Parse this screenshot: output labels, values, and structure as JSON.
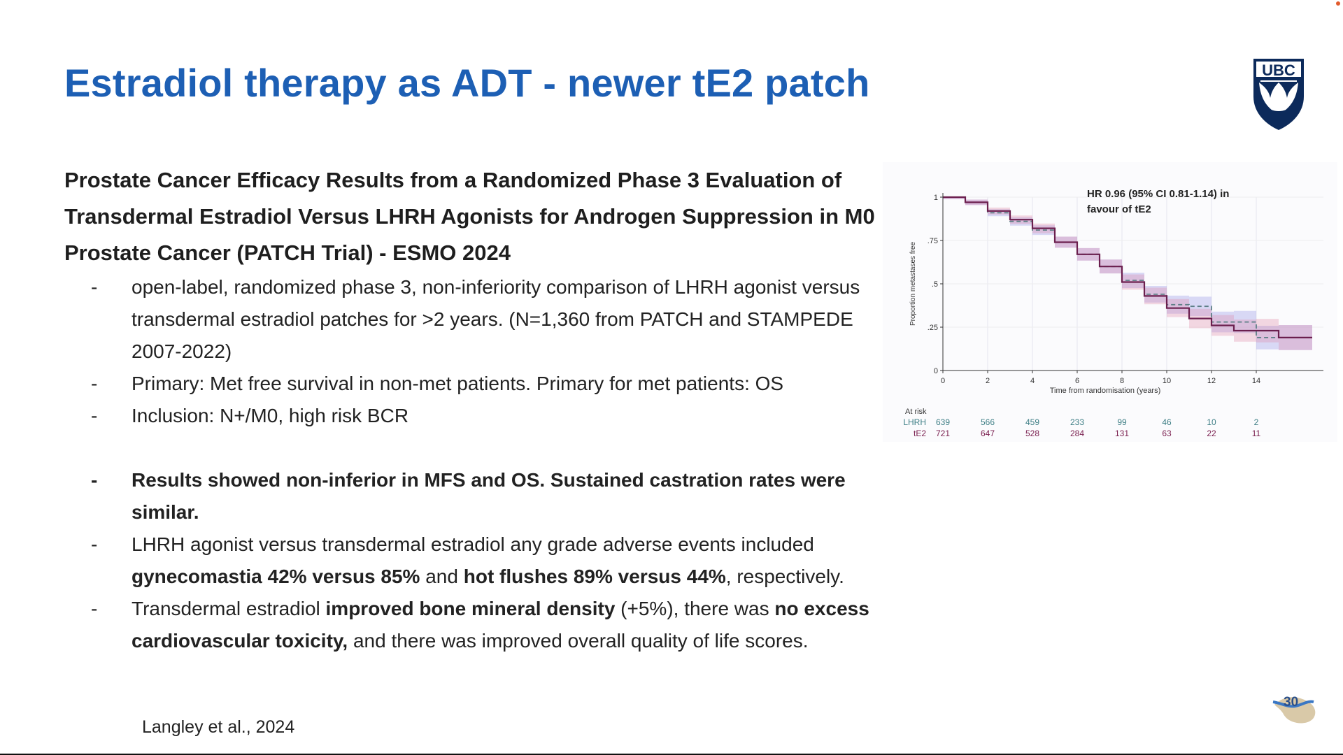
{
  "slide": {
    "title": "Estradiol therapy as ADT - newer tE2 patch",
    "logo_text": "UBC",
    "heading": "Prostate Cancer Efficacy Results from a Randomized Phase 3 Evaluation of Transdermal Estradiol Versus LHRH Agonists for Androgen Suppression in M0 Prostate Cancer (PATCH Trial) - ESMO 2024",
    "bullet_dash": "-",
    "bullets": {
      "b1": "open-label, randomized phase 3, non-inferiority comparison of LHRH agonist versus transdermal estradiol patches for >2 years. (N=1,360 from PATCH and STAMPEDE 2007-2022)",
      "b2": "Primary: Met free survival in non-met patients. Primary for met patients: OS",
      "b3": "Inclusion: N+/M0, high risk BCR",
      "b4": "Results showed non-inferior in MFS and OS. Sustained castration rates were similar.",
      "b5": {
        "t1": "LHRH agonist versus transdermal estradiol any grade adverse events included ",
        "t2": "gynecomastia 42% versus 85%",
        "t3": " and ",
        "t4": "hot flushes 89% versus 44%",
        "t5": ", respectively."
      },
      "b6": {
        "t1": "Transdermal estradiol ",
        "t2": "improved bone mineral density",
        "t3": " (+5%), there was ",
        "t4": "no excess cardiovascular toxicity,",
        "t5": " and there was improved overall quality of life scores."
      }
    },
    "citation": "Langley et al., 2024",
    "page_number": "30"
  },
  "chart_data": {
    "type": "line",
    "title": "",
    "annotation": [
      "HR 0.96 (95% CI 0.81-1.14) in",
      "favour of tE2"
    ],
    "xlabel": "Time from randomisation (years)",
    "ylabel": "Proportion metastases free",
    "xlim": [
      0,
      17
    ],
    "ylim": [
      0,
      1
    ],
    "x_ticks": [
      0,
      2,
      4,
      6,
      8,
      10,
      12,
      14
    ],
    "y_ticks": [
      0,
      0.25,
      0.5,
      0.75,
      1
    ],
    "y_tick_labels": [
      "0",
      ".25",
      ".5",
      ".75",
      "1"
    ],
    "series": [
      {
        "name": "LHRH",
        "style": "dashed",
        "color": "#5d7f86",
        "ci_color": "#8e8ee6",
        "x": [
          0,
          1,
          2,
          3,
          4,
          5,
          6,
          7,
          8,
          9,
          10,
          11,
          12,
          13,
          14,
          15,
          16.5
        ],
        "y": [
          1.0,
          0.97,
          0.91,
          0.86,
          0.81,
          0.74,
          0.67,
          0.6,
          0.52,
          0.44,
          0.38,
          0.37,
          0.28,
          0.28,
          0.19,
          0.19,
          0.19
        ]
      },
      {
        "name": "tE2",
        "style": "solid",
        "color": "#6b1f4e",
        "ci_color": "#e08aa8",
        "x": [
          0,
          1,
          2,
          3,
          4,
          5,
          6,
          7,
          8,
          9,
          10,
          11,
          12,
          13,
          14,
          15,
          16.5
        ],
        "y": [
          1.0,
          0.97,
          0.92,
          0.87,
          0.82,
          0.74,
          0.67,
          0.6,
          0.51,
          0.43,
          0.36,
          0.3,
          0.26,
          0.23,
          0.23,
          0.19,
          0.19
        ]
      }
    ],
    "at_risk": {
      "label": "At risk",
      "times": [
        0,
        2,
        4,
        6,
        8,
        10,
        12,
        14
      ],
      "rows": [
        {
          "name": "LHRH",
          "values": [
            "639",
            "566",
            "459",
            "233",
            "99",
            "46",
            "10",
            "2"
          ],
          "color": "#3f7f86"
        },
        {
          "name": "tE2",
          "values": [
            "721",
            "647",
            "528",
            "284",
            "131",
            "63",
            "22",
            "11"
          ],
          "color": "#7a1f4f"
        }
      ]
    }
  }
}
